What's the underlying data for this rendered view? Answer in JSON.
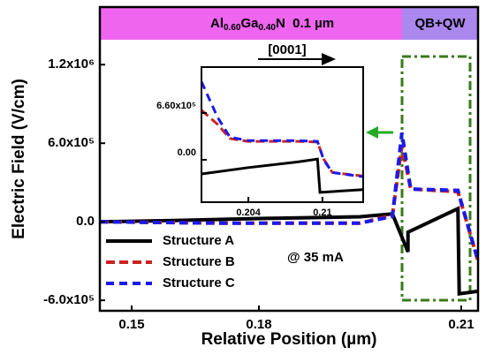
{
  "chart_data": [
    {
      "type": "line",
      "xlabel": "Relative Position (µm)",
      "ylabel": "Electric Field (V/cm)",
      "xlim": [
        0.1425,
        0.2125
      ],
      "xticks": [
        0.15,
        0.18,
        0.21
      ],
      "ylim": [
        -680000,
        1640000
      ],
      "yticks": [
        {
          "value": -600000,
          "label": "-6.0x10⁵"
        },
        {
          "value": 0,
          "label": "0.0"
        },
        {
          "value": 600000,
          "label": "6.0x10⁵"
        },
        {
          "value": 1200000,
          "label": "1.2x10⁶"
        }
      ],
      "annotations": [
        "Al",
        "0.60",
        "Ga",
        "0.40",
        "N  0.1 µm",
        "QB+QW",
        "[0001]",
        "@ 35 mA"
      ],
      "series": [
        {
          "name": "Structure A",
          "color": "#000000",
          "x": [
            0.1425,
            0.16,
            0.18,
            0.195,
            0.1998,
            0.2021,
            0.2021,
            0.2095,
            0.2097,
            0.2125
          ],
          "values": [
            0,
            10000,
            25000,
            38000,
            60000,
            -230000,
            -80000,
            100000,
            -550000,
            -530000
          ]
        },
        {
          "name": "Structure B",
          "color": "#cc2222",
          "x": [
            0.1425,
            0.17,
            0.195,
            0.1998,
            0.2012,
            0.2025,
            0.2095,
            0.2125
          ],
          "values": [
            0,
            -10000,
            -10000,
            50000,
            580000,
            250000,
            230000,
            -300000
          ]
        },
        {
          "name": "Structure C",
          "color": "#1a1aee",
          "x": [
            0.1425,
            0.17,
            0.195,
            0.1998,
            0.2012,
            0.2025,
            0.2095,
            0.2125
          ],
          "values": [
            0,
            -10000,
            -10000,
            40000,
            680000,
            250000,
            240000,
            -300000
          ]
        }
      ]
    },
    {
      "type": "line",
      "xlim": [
        0.2002,
        0.2133
      ],
      "xticks": [
        0.204,
        0.21
      ],
      "ylim": [
        -598000,
        1307000
      ],
      "yticks": [
        {
          "value": 0,
          "label": "0.00"
        },
        {
          "value": 660000,
          "label": "6.60x10⁵"
        }
      ],
      "series": [
        {
          "name": "Structure A",
          "color": "#000000",
          "x": [
            0.2002,
            0.204,
            0.208,
            0.2096,
            0.2098,
            0.2133
          ],
          "values": [
            -200000,
            -110000,
            -30000,
            10000,
            -460000,
            -420000
          ]
        },
        {
          "name": "Structure B",
          "color": "#cc2222",
          "x": [
            0.2002,
            0.2015,
            0.2025,
            0.204,
            0.208,
            0.2096,
            0.2101,
            0.2108,
            0.2133
          ],
          "values": [
            700000,
            500000,
            300000,
            260000,
            260000,
            250000,
            10000,
            -180000,
            -230000
          ]
        },
        {
          "name": "Structure C",
          "color": "#1a1aee",
          "x": [
            0.2002,
            0.2015,
            0.2025,
            0.204,
            0.208,
            0.2096,
            0.2101,
            0.2108,
            0.2133
          ],
          "values": [
            1100000,
            600000,
            320000,
            270000,
            270000,
            260000,
            0,
            -180000,
            -240000
          ]
        }
      ]
    }
  ]
}
